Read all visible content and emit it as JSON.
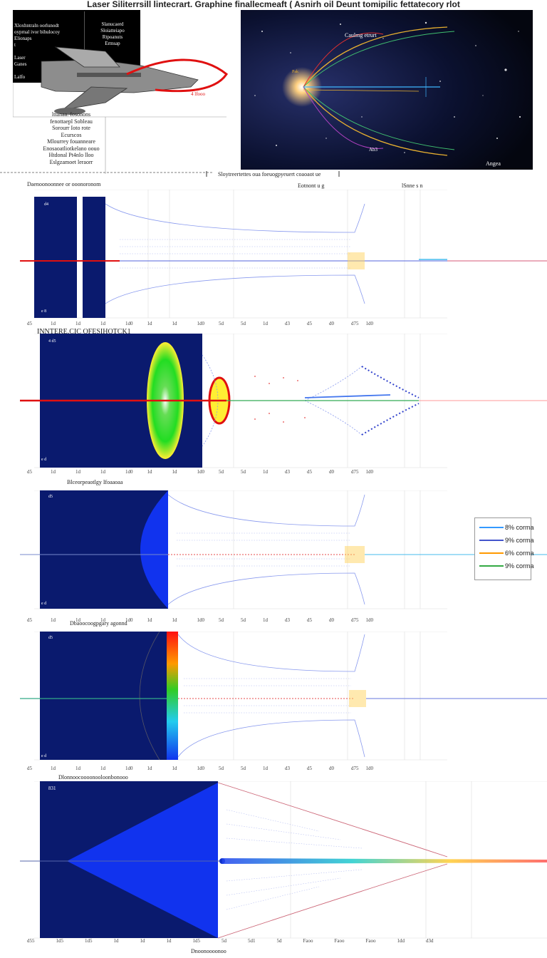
{
  "header": {
    "title": "Laser Siliterrsill lintecrart. Graphine finallecmeaft ( Asnirh oil Deunt tomipilic fettatecory rlot"
  },
  "aircraft_panel": {
    "plate_text": "Xloxhntraln oorlunodt\noyprnal ivor bihulocoy\nElionaps\nt\n\nLaser\nGanes\n\nLalfo\nlaso",
    "plate_right_text": "Slanucaerd\nSloiatteiapo\nRtpoanuts\nErmsap",
    "red_label": "4 lfooo",
    "notes_text": "lttanaa. fosonons\nfenottaepl Sobleau\nSorourr Ioto rote\nEcurscos\nMlourrey fouanneare\nEnosaoatliotkelano oouo\nHtdonal Pt4nlo lloo\nEslgzamoet leraorr"
  },
  "space_panel": {
    "label_top": "Caulmg etrurt",
    "label_left": "Pak",
    "label_bottom": "Ab3",
    "label_corner": "Angea"
  },
  "section_caption": "Sloytreertettes oua foeuogpyeuert coaoaot ue",
  "panels": [
    {
      "caption_left": "Daenoonoonnee or ooonoronom",
      "caption_right": "Eotnont u g",
      "caption_far": "lSnne s n",
      "tl_label": "d4",
      "bl_label": "e 8",
      "ticks": [
        "d5",
        "1d",
        "1d",
        "1d",
        "1d0",
        "1d",
        "1d",
        "1d0",
        "5d",
        "5d",
        "1d",
        "d3",
        "d5",
        "d0",
        "d75",
        "1d0"
      ]
    },
    {
      "caption_left": "INNTERE.CIC OFESIHOTCK1",
      "tl_label": "4 d5",
      "bl_label": "e d",
      "ticks": [
        "d5",
        "1d",
        "1d",
        "1d",
        "1d0",
        "1d",
        "1d",
        "1d0",
        "5d",
        "5d",
        "1d",
        "d3",
        "d5",
        "d0",
        "d75",
        "1d0"
      ]
    },
    {
      "caption_left": "Blceorpeaotlgy Ifoaaoaa",
      "tl_label": "d5",
      "bl_label": "e d",
      "ticks": [
        "d5",
        "1d",
        "1d",
        "1d",
        "1d0",
        "1d",
        "1d",
        "1d0",
        "5d",
        "5d",
        "1d",
        "d3",
        "d5",
        "d0",
        "d75",
        "1d0"
      ]
    },
    {
      "caption_left": "Dbaoocoogpgary agonnd",
      "tl_label": "d5",
      "bl_label": "e d",
      "ticks": [
        "d5",
        "1d",
        "1d",
        "1d",
        "1d0",
        "1d",
        "1d",
        "1d0",
        "5d",
        "5d",
        "1d",
        "d3",
        "d5",
        "d0",
        "d75",
        "1d0"
      ]
    },
    {
      "caption_left": "Dlonnoocoooonooloonbonooo",
      "tl_label": "831",
      "ticks": [
        "d55",
        "1d5",
        "1d5",
        "1d",
        "1d",
        "1d",
        "1d5",
        "5d",
        "5d1",
        "5d",
        "Faoo",
        "Faoo",
        "Faoo",
        "1dd",
        "d3d"
      ],
      "bottom_caption": "Dnoonoooonoo"
    }
  ],
  "legend": {
    "items": [
      {
        "label": "8% corma",
        "color": "#3399ff"
      },
      {
        "label": "9% corma",
        "color": "#4455cc"
      },
      {
        "label": "6% corma",
        "color": "#ff9900"
      },
      {
        "label": "9% corma",
        "color": "#33aa44"
      }
    ]
  },
  "colors": {
    "panel_navy": "#0a1a6e",
    "beam_red": "#e01010",
    "grid_blue": "#8899ee"
  }
}
